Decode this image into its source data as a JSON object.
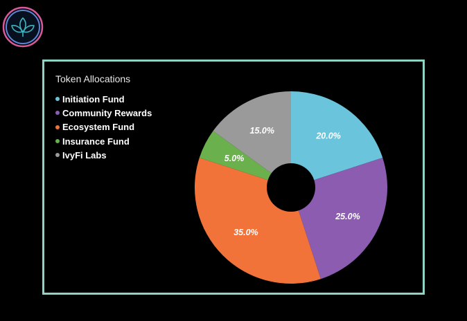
{
  "chart_data": {
    "type": "pie",
    "title": "Token Allocations",
    "legend_position": "top-left",
    "hole": "donut",
    "labels": [
      "Initiation Fund",
      "Community Rewards",
      "Ecosystem Fund",
      "Insurance Fund",
      "IvyFi Labs"
    ],
    "values": [
      20.0,
      25.0,
      35.0,
      5.0,
      15.0
    ],
    "value_labels": [
      "20.0%",
      "25.0%",
      "35.0%",
      "5.0%",
      "15.0%"
    ],
    "colors": [
      "#6ac5dc",
      "#8b5cb0",
      "#f2733a",
      "#6ab04c",
      "#9a9a9a"
    ]
  },
  "logo": {
    "name": "ivy-leaf-logo",
    "ring_colors": [
      "#e05a9a",
      "#6a8ad8"
    ]
  }
}
